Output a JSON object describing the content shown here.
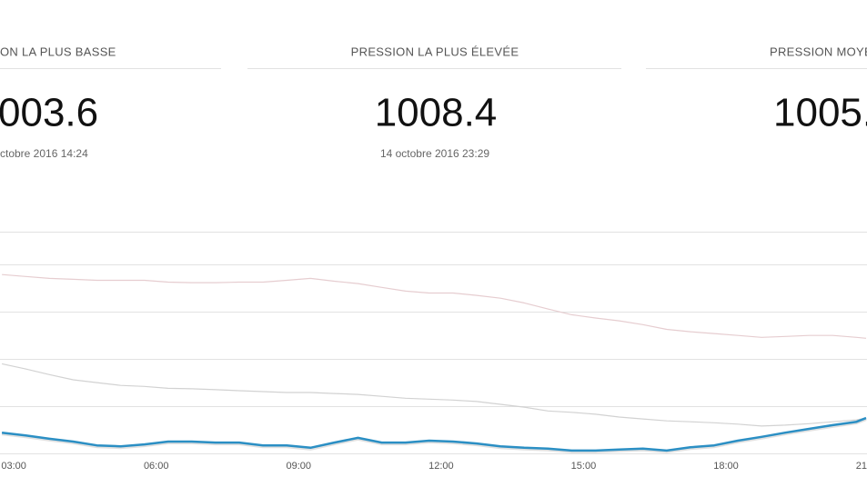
{
  "cards": [
    {
      "title": "ON LA PLUS BASSE",
      "value": "003.6",
      "date": "ctobre 2016 14:24"
    },
    {
      "title": "PRESSION LA PLUS ÉLEVÉE",
      "value": "1008.4",
      "date": "14 octobre 2016 23:29"
    },
    {
      "title": "PRESSION MOYE",
      "value": "1005."
    }
  ],
  "chart_data": {
    "type": "line",
    "x": [
      2.75,
      3.25,
      3.75,
      4.25,
      4.75,
      5.25,
      5.75,
      6.25,
      6.75,
      7.25,
      7.75,
      8.25,
      8.75,
      9.25,
      9.75,
      10.25,
      10.75,
      11.25,
      11.75,
      12.25,
      12.75,
      13.25,
      13.75,
      14.25,
      14.75,
      15.25,
      15.75,
      16.25,
      16.75,
      17.25,
      17.75,
      18.25,
      18.75,
      19.25,
      19.75,
      20.25,
      20.75,
      20.95
    ],
    "xlim": [
      2.71,
      20.97
    ],
    "xticks": [
      {
        "value": 3,
        "label": "03:00"
      },
      {
        "value": 6,
        "label": "06:00"
      },
      {
        "value": 9,
        "label": "09:00"
      },
      {
        "value": 12,
        "label": "12:00"
      },
      {
        "value": 15,
        "label": "15:00"
      },
      {
        "value": 18,
        "label": "18:00"
      },
      {
        "value": 21,
        "label": "21"
      }
    ],
    "ylim": [
      1003,
      1007.7
    ],
    "yticks": [
      1003,
      1004,
      1005,
      1006,
      1007
    ],
    "grid": true,
    "series": [
      {
        "color": "#e6cdd0",
        "values": [
          1006.79,
          1006.75,
          1006.71,
          1006.69,
          1006.67,
          1006.67,
          1006.67,
          1006.63,
          1006.62,
          1006.62,
          1006.63,
          1006.63,
          1006.67,
          1006.71,
          1006.65,
          1006.6,
          1006.52,
          1006.44,
          1006.4,
          1006.4,
          1006.35,
          1006.29,
          1006.19,
          1006.06,
          1005.94,
          1005.87,
          1005.81,
          1005.73,
          1005.63,
          1005.58,
          1005.54,
          1005.5,
          1005.46,
          1005.48,
          1005.5,
          1005.5,
          1005.46,
          1005.44
        ]
      },
      {
        "color": "#d2d2d2",
        "values": [
          1004.9,
          1004.79,
          1004.67,
          1004.56,
          1004.5,
          1004.44,
          1004.42,
          1004.38,
          1004.37,
          1004.35,
          1004.33,
          1004.31,
          1004.29,
          1004.29,
          1004.27,
          1004.25,
          1004.21,
          1004.17,
          1004.15,
          1004.13,
          1004.1,
          1004.04,
          1003.98,
          1003.9,
          1003.87,
          1003.83,
          1003.77,
          1003.73,
          1003.69,
          1003.67,
          1003.65,
          1003.62,
          1003.58,
          1003.6,
          1003.63,
          1003.67,
          1003.71,
          1003.75
        ]
      },
      {
        "color": "#2b8fc4",
        "values": [
          1003.44,
          1003.38,
          1003.31,
          1003.25,
          1003.17,
          1003.15,
          1003.19,
          1003.25,
          1003.25,
          1003.23,
          1003.23,
          1003.17,
          1003.17,
          1003.12,
          1003.23,
          1003.33,
          1003.23,
          1003.23,
          1003.27,
          1003.25,
          1003.21,
          1003.15,
          1003.12,
          1003.1,
          1003.06,
          1003.06,
          1003.08,
          1003.1,
          1003.06,
          1003.13,
          1003.17,
          1003.27,
          1003.35,
          1003.44,
          1003.52,
          1003.6,
          1003.67,
          1003.75
        ]
      }
    ]
  }
}
